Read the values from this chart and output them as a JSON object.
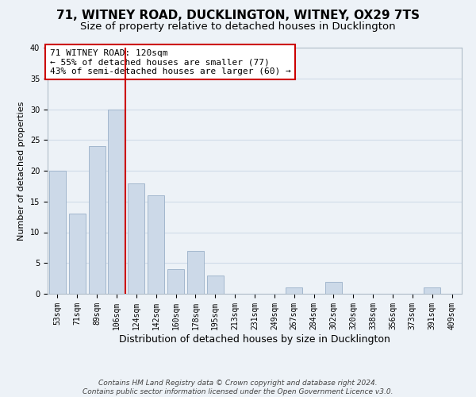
{
  "title": "71, WITNEY ROAD, DUCKLINGTON, WITNEY, OX29 7TS",
  "subtitle": "Size of property relative to detached houses in Ducklington",
  "xlabel": "Distribution of detached houses by size in Ducklington",
  "ylabel": "Number of detached properties",
  "footer_line1": "Contains HM Land Registry data © Crown copyright and database right 2024.",
  "footer_line2": "Contains public sector information licensed under the Open Government Licence v3.0.",
  "bar_labels": [
    "53sqm",
    "71sqm",
    "89sqm",
    "106sqm",
    "124sqm",
    "142sqm",
    "160sqm",
    "178sqm",
    "195sqm",
    "213sqm",
    "231sqm",
    "249sqm",
    "267sqm",
    "284sqm",
    "302sqm",
    "320sqm",
    "338sqm",
    "356sqm",
    "373sqm",
    "391sqm",
    "409sqm"
  ],
  "bar_values": [
    20,
    13,
    24,
    30,
    18,
    16,
    4,
    7,
    3,
    0,
    0,
    0,
    1,
    0,
    2,
    0,
    0,
    0,
    0,
    1,
    0
  ],
  "bar_color": "#ccd9e8",
  "bar_edgecolor": "#9ab0c8",
  "reference_line_color": "#cc0000",
  "annotation_title": "71 WITNEY ROAD: 120sqm",
  "annotation_line1": "← 55% of detached houses are smaller (77)",
  "annotation_line2": "43% of semi-detached houses are larger (60) →",
  "annotation_box_edgecolor": "#cc0000",
  "annotation_box_facecolor": "#ffffff",
  "ylim": [
    0,
    40
  ],
  "yticks": [
    0,
    5,
    10,
    15,
    20,
    25,
    30,
    35,
    40
  ],
  "grid_color": "#d0dce8",
  "background_color": "#edf2f7",
  "title_fontsize": 11,
  "subtitle_fontsize": 9.5,
  "xlabel_fontsize": 9,
  "ylabel_fontsize": 8,
  "tick_fontsize": 7,
  "annotation_fontsize": 8,
  "footer_fontsize": 6.5
}
